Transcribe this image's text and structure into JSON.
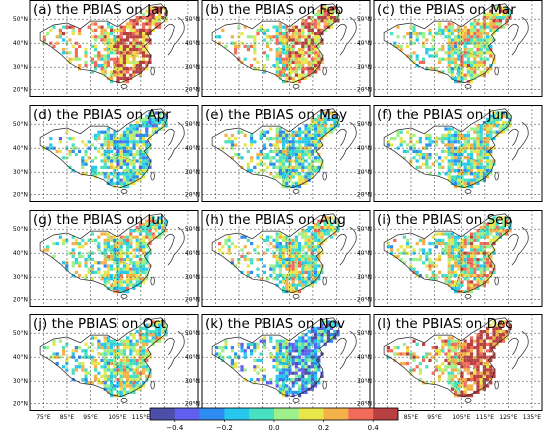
{
  "figure": {
    "panels": [
      {
        "title": "(a) the PBIAS on Jan",
        "month": "Jan",
        "bias": 0.25
      },
      {
        "title": "(b) the PBIAS on Feb",
        "month": "Feb",
        "bias": 0.2
      },
      {
        "title": "(c) the PBIAS on Mar",
        "month": "Mar",
        "bias": 0.1
      },
      {
        "title": "(d) the PBIAS on Apr",
        "month": "Apr",
        "bias": -0.05
      },
      {
        "title": "(e) the PBIAS on May",
        "month": "May",
        "bias": 0.0
      },
      {
        "title": "(f) the PBIAS on Jun",
        "month": "Jun",
        "bias": 0.02
      },
      {
        "title": "(g) the PBIAS on Jul",
        "month": "Jul",
        "bias": 0.05
      },
      {
        "title": "(h) the PBIAS on Aug",
        "month": "Aug",
        "bias": 0.05
      },
      {
        "title": "(i) the PBIAS on Sep",
        "month": "Sep",
        "bias": 0.1
      },
      {
        "title": "(j) the PBIAS on Oct",
        "month": "Oct",
        "bias": 0.05
      },
      {
        "title": "(k) the PBIAS on Nov",
        "month": "Nov",
        "bias": -0.15
      },
      {
        "title": "(l) the PBIAS on Dec",
        "month": "Dec",
        "bias": 0.3
      }
    ],
    "lat_labels": [
      "50°N",
      "40°N",
      "30°N",
      "20°N"
    ],
    "lon_labels": [
      "75°E",
      "85°E",
      "95°E",
      "105°E",
      "115°E",
      "125°E",
      "135°E"
    ],
    "colorbar": {
      "colors": [
        "#4b4fa8",
        "#5f5ff0",
        "#2e8cf0",
        "#27c8ee",
        "#47e0c0",
        "#9ef08a",
        "#e8e64a",
        "#f4b14a",
        "#f26a5a",
        "#b84040"
      ],
      "tick_labels": [
        "−0.4",
        "−0.2",
        "0.0",
        "0.2",
        "0.4"
      ],
      "tick_values": [
        -0.4,
        -0.2,
        0.0,
        0.2,
        0.4
      ],
      "range": [
        -0.5,
        0.5
      ]
    }
  }
}
